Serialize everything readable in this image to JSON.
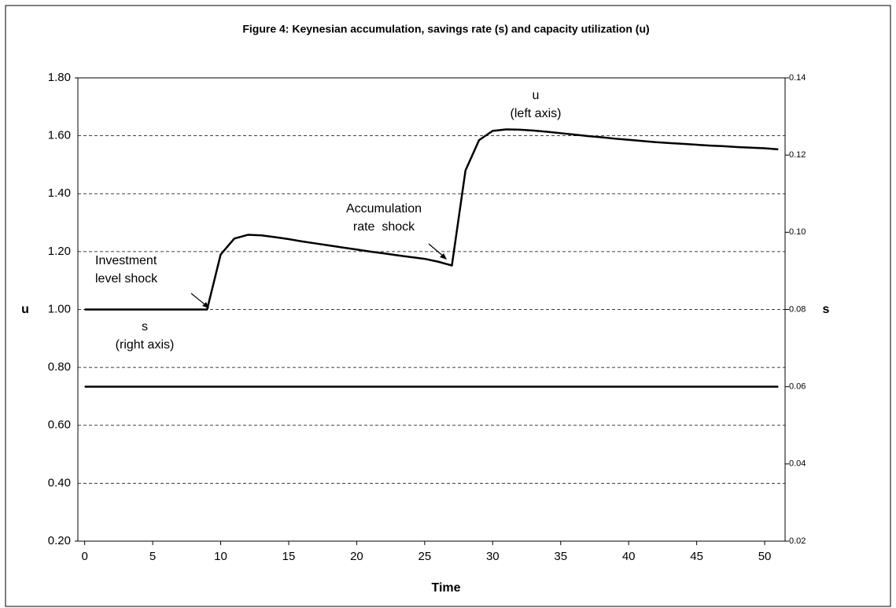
{
  "chart_data": {
    "type": "line",
    "title": "Figure 4: Keynesian accumulation, savings rate (s) and capacity utilization (u)",
    "x_label": "Time",
    "y_label": "u",
    "y2_label": "s",
    "x": [
      0,
      1,
      2,
      3,
      4,
      5,
      6,
      7,
      8,
      9,
      10,
      11,
      12,
      13,
      14,
      15,
      16,
      17,
      18,
      19,
      20,
      21,
      22,
      23,
      24,
      25,
      26,
      27,
      28,
      29,
      30,
      31,
      32,
      33,
      34,
      35,
      36,
      37,
      38,
      39,
      40,
      41,
      42,
      43,
      44,
      45,
      46,
      47,
      48,
      49,
      50,
      51
    ],
    "series": [
      {
        "name": "u",
        "color": "#000000",
        "axis": "y",
        "values": [
          1.0,
          1.0,
          1.0,
          1.0,
          1.0,
          1.0,
          1.0,
          1.0,
          1.0,
          1.0,
          1.19,
          1.245,
          1.258,
          1.256,
          1.25,
          1.243,
          1.235,
          1.228,
          1.221,
          1.214,
          1.207,
          1.2,
          1.194,
          1.187,
          1.181,
          1.175,
          1.165,
          1.152,
          1.48,
          1.585,
          1.617,
          1.622,
          1.621,
          1.618,
          1.614,
          1.609,
          1.604,
          1.599,
          1.595,
          1.59,
          1.586,
          1.582,
          1.578,
          1.575,
          1.572,
          1.569,
          1.566,
          1.564,
          1.561,
          1.559,
          1.557,
          1.553
        ]
      },
      {
        "name": "s",
        "color": "#000000",
        "axis": "y2",
        "values": [
          0.06,
          0.06,
          0.06,
          0.06,
          0.06,
          0.06,
          0.06,
          0.06,
          0.06,
          0.06,
          0.06,
          0.06,
          0.06,
          0.06,
          0.06,
          0.06,
          0.06,
          0.06,
          0.06,
          0.06,
          0.06,
          0.06,
          0.06,
          0.06,
          0.06,
          0.06,
          0.06,
          0.06,
          0.06,
          0.06,
          0.06,
          0.06,
          0.06,
          0.06,
          0.06,
          0.06,
          0.06,
          0.06,
          0.06,
          0.06,
          0.06,
          0.06,
          0.06,
          0.06,
          0.06,
          0.06,
          0.06,
          0.06,
          0.06,
          0.06,
          0.06,
          0.06
        ]
      }
    ],
    "xlim": [
      -0.5,
      51.5
    ],
    "xticks": [
      0,
      5,
      10,
      15,
      20,
      25,
      30,
      35,
      40,
      45,
      50
    ],
    "ylim": [
      0.2,
      1.8
    ],
    "yticks": [
      {
        "value": 0.2,
        "label": "0.20"
      },
      {
        "value": 0.4,
        "label": "0.40"
      },
      {
        "value": 0.6,
        "label": "0.60"
      },
      {
        "value": 0.8,
        "label": "0.80"
      },
      {
        "value": 1.0,
        "label": "1.00"
      },
      {
        "value": 1.2,
        "label": "1.20"
      },
      {
        "value": 1.4,
        "label": "1.40"
      },
      {
        "value": 1.6,
        "label": "1.60"
      },
      {
        "value": 1.8,
        "label": "1.80"
      }
    ],
    "y2lim": [
      0.02,
      0.14
    ],
    "y2ticks": [
      0.02,
      0.04,
      0.06,
      0.08,
      {
        "value": 0.1,
        "label": "0.10"
      },
      0.12,
      0.14
    ],
    "grid": true,
    "annotations": [
      {
        "lines": [
          "u",
          "(left axis)"
        ]
      },
      {
        "lines": [
          "s",
          "(right axis)"
        ]
      },
      {
        "lines": [
          "Investment",
          "level shock"
        ]
      },
      {
        "lines": [
          "Accumulation",
          "rate  shock"
        ]
      }
    ]
  }
}
